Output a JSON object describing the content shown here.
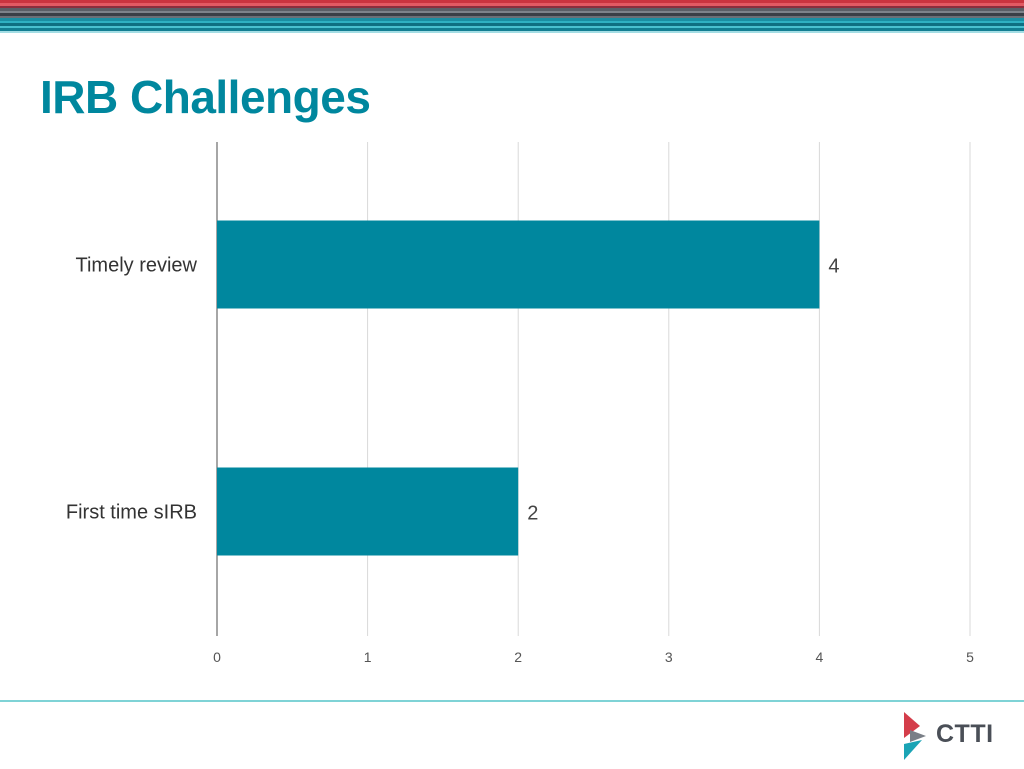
{
  "slide": {
    "title": "IRB Challenges"
  },
  "logo": {
    "text": "CTTI"
  },
  "colors": {
    "bar": "#00879e",
    "title": "#00879e",
    "grid": "#d9d9d9",
    "axis": "#888888",
    "label": "#333333",
    "logo_red": "#d43d4a",
    "logo_teal": "#1aa4b5"
  },
  "chart_data": {
    "type": "bar",
    "orientation": "horizontal",
    "categories": [
      "Timely review",
      "First time sIRB"
    ],
    "values": [
      4,
      2
    ],
    "data_labels": [
      "4",
      "2"
    ],
    "xlim": [
      0,
      5
    ],
    "x_ticks": [
      "0",
      "1",
      "2",
      "3",
      "4",
      "5"
    ],
    "grid": true,
    "legend": "none"
  }
}
